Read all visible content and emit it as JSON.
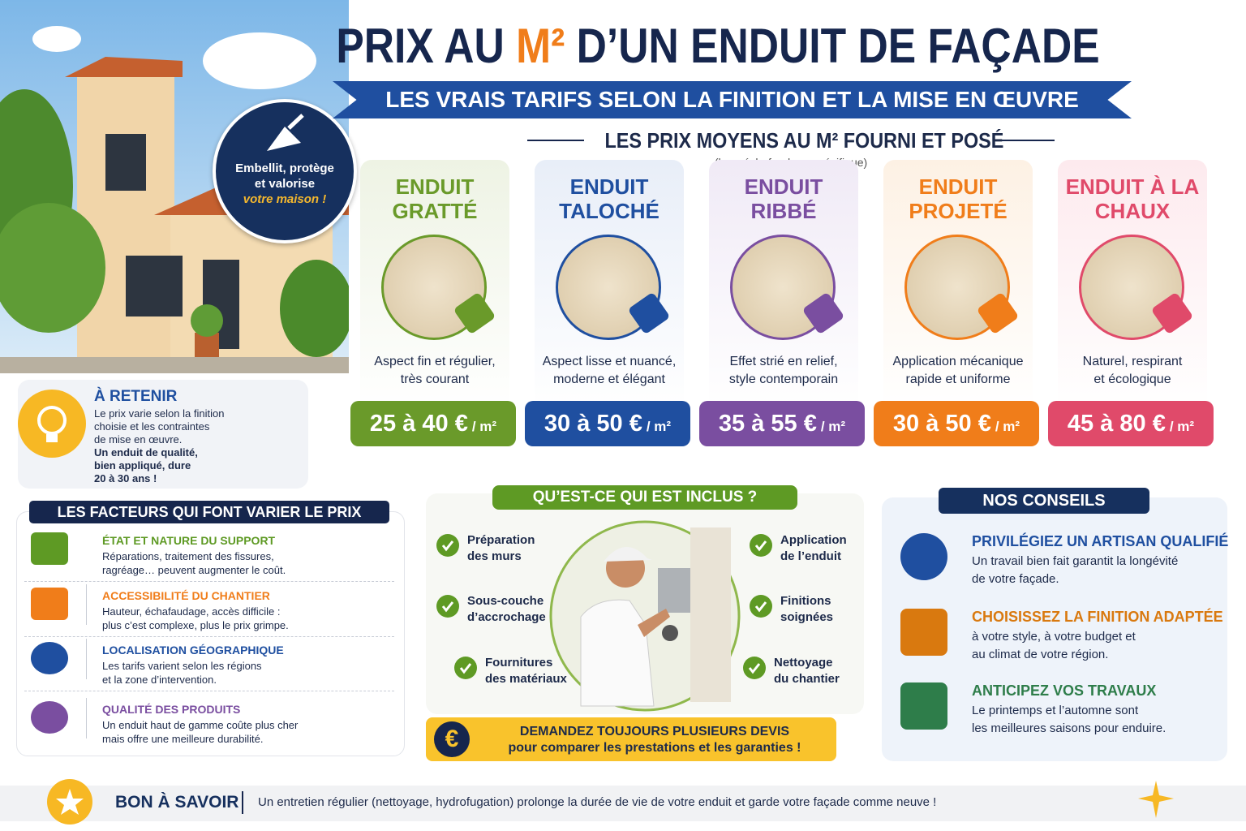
{
  "header": {
    "title_start": "PRIX AU",
    "title_highlight": "M²",
    "title_end": "D’UN ENDUIT DE FAÇADE",
    "subtitle": "LES VRAIS TARIFS SELON LA FINITION ET LA MISE EN ŒUVRE"
  },
  "badge": {
    "lines": [
      "Embellit, protège",
      "et valorise"
    ],
    "tagline": "votre maison !"
  },
  "prices": {
    "heading": "LES PRIX MOYENS AU M² FOURNI ET POSÉ",
    "note": "(hors échafaudage spécifique)",
    "cards": [
      {
        "title": [
          "ENDUIT",
          "GRATTÉ"
        ],
        "description": [
          "Aspect fin et régulier,",
          "très courant"
        ],
        "price": "25 à 40 €",
        "unit": "/ m²"
      },
      {
        "title": [
          "ENDUIT",
          "TALOCHÉ"
        ],
        "description": [
          "Aspect lisse et nuancé,",
          "moderne et élégant"
        ],
        "price": "30 à 50 €",
        "unit": "/ m²"
      },
      {
        "title": [
          "ENDUIT",
          "RIBBÉ"
        ],
        "description": [
          "Effet strié en relief,",
          "style contemporain"
        ],
        "price": "35 à 55 €",
        "unit": "/ m²"
      },
      {
        "title": [
          "ENDUIT",
          "PROJETÉ"
        ],
        "description": [
          "Application mécanique",
          "rapide et uniforme"
        ],
        "price": "30 à 50 €",
        "unit": "/ m²"
      },
      {
        "title": [
          "ENDUIT À LA",
          "CHAUX"
        ],
        "description": [
          "Naturel, respirant",
          "et écologique"
        ],
        "price": "45 à 80 €",
        "unit": "/ m²"
      }
    ]
  },
  "retenir": {
    "title": "À RETENIR",
    "text": [
      "Le prix varie selon la finition",
      "choisie et les contraintes",
      "de mise en œuvre."
    ],
    "emphasis": [
      "Un enduit de qualité,",
      "bien appliqué, dure",
      "20 à 30 ans !"
    ]
  },
  "factors": {
    "title": "LES FACTEURS QUI FONT VARIER LE PRIX",
    "items": [
      {
        "title": "ÉTAT ET NATURE DU SUPPORT",
        "text": [
          "Réparations, traitement des fissures,",
          "ragréage… peuvent augmenter le coût."
        ]
      },
      {
        "title": "ACCESSIBILITÉ DU CHANTIER",
        "text": [
          "Hauteur, échafaudage, accès difficile :",
          "plus c’est complexe, plus le prix grimpe."
        ]
      },
      {
        "title": "LOCALISATION GÉOGRAPHIQUE",
        "text": [
          "Les tarifs varient selon les régions",
          "et la zone d’intervention."
        ]
      },
      {
        "title": "QUALITÉ DES PRODUITS",
        "text": [
          "Un enduit haut de gamme coûte plus cher",
          "mais offre une meilleure durabilité."
        ]
      }
    ]
  },
  "included": {
    "title": "QU’EST-CE QUI EST INCLUS ?",
    "items": [
      [
        "Préparation",
        "des murs"
      ],
      [
        "Sous-couche",
        "d’accrochage"
      ],
      [
        "Fournitures",
        "des matériaux"
      ],
      [
        "Application",
        "de l’enduit"
      ],
      [
        "Finitions",
        "soignées"
      ],
      [
        "Nettoyage",
        "du chantier"
      ]
    ],
    "banner": {
      "icon": "€",
      "title": "DEMANDEZ TOUJOURS PLUSIEURS DEVIS",
      "text": "pour comparer les prestations et les garanties !"
    }
  },
  "advice": {
    "title": "NOS CONSEILS",
    "items": [
      {
        "title": "PRIVILÉGIEZ UN ARTISAN QUALIFIÉ",
        "text": [
          "Un travail bien fait garantit la longévité",
          "de votre façade."
        ]
      },
      {
        "title": "CHOISISSEZ LA FINITION ADAPTÉE",
        "text": [
          "à votre style, à votre budget et",
          "au climat de votre région."
        ]
      },
      {
        "title": "ANTICIPEZ VOS TRAVAUX",
        "text": [
          "Le printemps et l’automne sont",
          "les meilleures saisons pour enduire."
        ]
      }
    ]
  },
  "footer": {
    "title": "BON À SAVOIR",
    "text": "Un entretien régulier (nettoyage, hydrofugation) prolonge la durée de vie de votre enduit et garde votre façade comme neuve !"
  }
}
